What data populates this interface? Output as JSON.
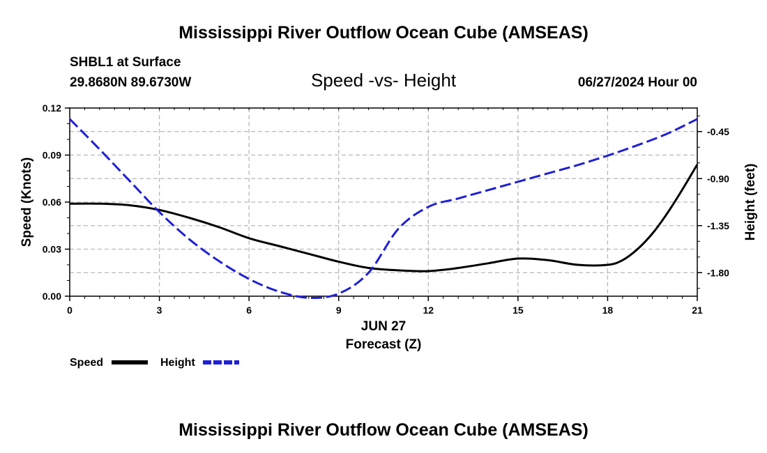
{
  "page_title": "Mississippi River Outflow Ocean Cube (AMSEAS)",
  "footer_title": "Mississippi River Outflow Ocean Cube (AMSEAS)",
  "station": "SHBL1 at Surface",
  "coords": "29.8680N  89.6730W",
  "datetime": "06/27/2024 Hour 00",
  "chart_data": {
    "type": "line",
    "title": "Speed -vs- Height",
    "xlabel": "Forecast (Z)",
    "date_label": "JUN 27",
    "ylabel": "Speed (Knots)",
    "y2label": "Height (feet)",
    "xlim": [
      0,
      21
    ],
    "ylim": [
      0,
      0.12
    ],
    "y2lim": [
      -2.025,
      -0.225
    ],
    "grid": true,
    "x_ticks": [
      "0",
      "3",
      "6",
      "9",
      "12",
      "15",
      "18",
      "21"
    ],
    "x_tick_values": [
      0,
      3,
      6,
      9,
      12,
      15,
      18,
      21
    ],
    "y_ticks": [
      "0.00",
      "0.03",
      "0.06",
      "0.09",
      "0.12"
    ],
    "y_tick_values": [
      0,
      0.03,
      0.06,
      0.09,
      0.12
    ],
    "y2_ticks": [
      "-0.45",
      "-0.90",
      "-1.35",
      "-1.80"
    ],
    "y2_tick_values": [
      -0.45,
      -0.9,
      -1.35,
      -1.8
    ],
    "series": [
      {
        "name": "Speed",
        "axis": "left",
        "color": "#000000",
        "style": "solid",
        "x": [
          0,
          1,
          2,
          3,
          4,
          5,
          6,
          7,
          8,
          9,
          10,
          11,
          12,
          13,
          14,
          15,
          16,
          17,
          18,
          18.5,
          19,
          19.5,
          20,
          20.5,
          21
        ],
        "y": [
          0.059,
          0.059,
          0.058,
          0.055,
          0.05,
          0.044,
          0.037,
          0.032,
          0.027,
          0.022,
          0.018,
          0.0165,
          0.016,
          0.018,
          0.021,
          0.024,
          0.023,
          0.02,
          0.02,
          0.023,
          0.03,
          0.04,
          0.053,
          0.068,
          0.084
        ]
      },
      {
        "name": "Height",
        "axis": "right",
        "color": "#1f1fd6",
        "style": "dashed",
        "x": [
          0,
          1,
          2,
          3,
          4,
          5,
          6,
          7,
          8,
          9,
          10,
          11,
          12,
          13,
          14,
          15,
          16,
          17,
          18,
          19,
          20,
          21
        ],
        "y": [
          -0.33,
          -0.62,
          -0.92,
          -1.22,
          -1.48,
          -1.69,
          -1.86,
          -1.98,
          -2.04,
          -2.0,
          -1.8,
          -1.38,
          -1.17,
          -1.09,
          -1.01,
          -0.93,
          -0.85,
          -0.77,
          -0.68,
          -0.58,
          -0.47,
          -0.33
        ]
      }
    ],
    "legend": [
      "Speed",
      "Height"
    ]
  }
}
